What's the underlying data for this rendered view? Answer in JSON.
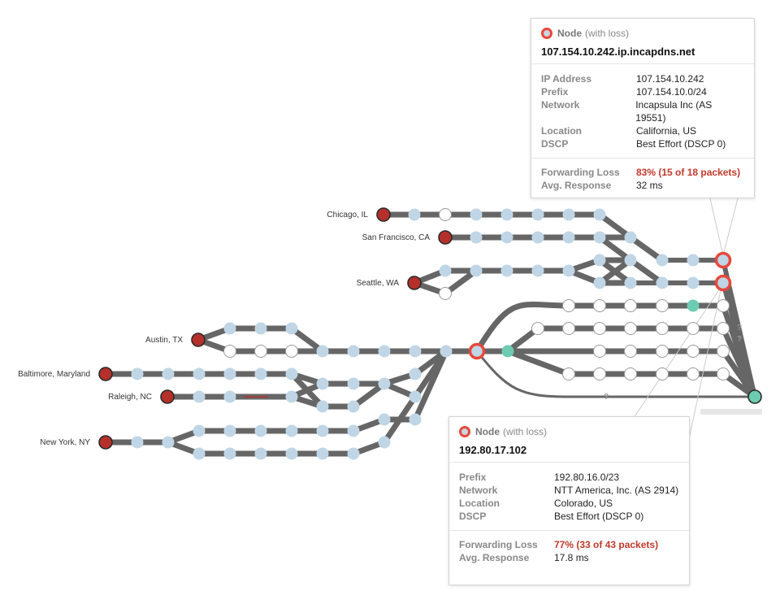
{
  "graph": {
    "sources": [
      {
        "label": "Chicago, IL"
      },
      {
        "label": "San Francisco, CA"
      },
      {
        "label": "Seattle, WA"
      },
      {
        "label": "Austin, TX"
      },
      {
        "label": "Baltimore, Maryland"
      },
      {
        "label": "Raleigh, NC"
      },
      {
        "label": "New York, NY"
      }
    ],
    "unknown_marker": "?",
    "colors": {
      "agent": "#b5302a",
      "hop": "#c0d6e6",
      "hop_unresponsive": "#ffffff",
      "loss_ring": "#e8483c",
      "highlight": "#6dcbb1",
      "edge": "#666666"
    }
  },
  "tooltips": [
    {
      "kind": "Node",
      "kind_note": "(with loss)",
      "hostname": "107.154.10.242.ip.incapdns.net",
      "details": [
        {
          "label": "IP Address",
          "value": "107.154.10.242"
        },
        {
          "label": "Prefix",
          "value": "107.154.10.0/24"
        },
        {
          "label": "Network",
          "value": "Incapsula Inc (AS 19551)"
        },
        {
          "label": "Location",
          "value": "California, US"
        },
        {
          "label": "DSCP",
          "value": "Best Effort (DSCP 0)"
        }
      ],
      "metrics": [
        {
          "label": "Forwarding Loss",
          "value": "83% (15 of 18 packets)",
          "loss": true
        },
        {
          "label": "Avg. Response",
          "value": "32 ms",
          "loss": false
        }
      ]
    },
    {
      "kind": "Node",
      "kind_note": "(with loss)",
      "hostname": "192.80.17.102",
      "details": [
        {
          "label": "Prefix",
          "value": "192.80.16.0/23"
        },
        {
          "label": "Network",
          "value": "NTT America, Inc. (AS 2914)"
        },
        {
          "label": "Location",
          "value": "Colorado, US"
        },
        {
          "label": "DSCP",
          "value": "Best Effort (DSCP 0)"
        }
      ],
      "metrics": [
        {
          "label": "Forwarding Loss",
          "value": "77% (33 of 43 packets)",
          "loss": true
        },
        {
          "label": "Avg. Response",
          "value": "17.8 ms",
          "loss": false
        }
      ]
    }
  ]
}
